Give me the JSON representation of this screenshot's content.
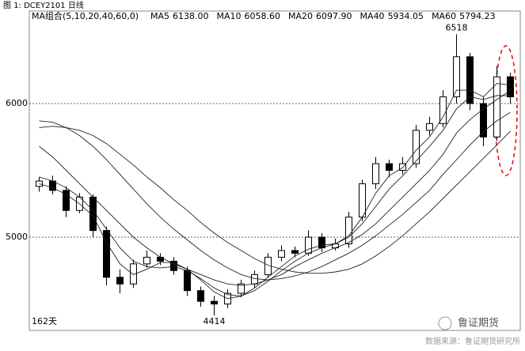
{
  "chart_data": {
    "type": "candlestick",
    "title": "图 1: DCEY2101 日线",
    "legend_title": "MA组合(5,10,20,40,60,0)",
    "period_label": "162天",
    "source": "数据来源：鲁证期货研究所",
    "watermark": "鲁证期货",
    "ylim": [
      4302,
      6692
    ],
    "yticks": [
      5000,
      6000
    ],
    "grid": true,
    "candle_color": "#000000",
    "open": [
      5380,
      5420,
      5350,
      5200,
      5300,
      5050,
      4700,
      4650,
      4800,
      4850,
      4820,
      4750,
      4600,
      4520,
      4500,
      4580,
      4650,
      4720,
      4850,
      4900,
      4880,
      5000,
      4920,
      4950,
      5150,
      5400,
      5550,
      5500,
      5550,
      5800,
      5850,
      6050,
      6350,
      6000,
      5750,
      6200
    ],
    "high": [
      5450,
      5460,
      5380,
      5330,
      5320,
      5080,
      4760,
      4830,
      4900,
      4880,
      4850,
      4780,
      4630,
      4560,
      4610,
      4680,
      4750,
      4880,
      4940,
      4930,
      5050,
      5030,
      4990,
      5190,
      5430,
      5600,
      5580,
      5600,
      5840,
      5900,
      6100,
      6518,
      6380,
      6050,
      6280,
      6230
    ],
    "low": [
      5340,
      5320,
      5150,
      5180,
      5000,
      4640,
      4580,
      4620,
      4770,
      4790,
      4720,
      4560,
      4480,
      4414,
      4470,
      4550,
      4620,
      4700,
      4820,
      4850,
      4860,
      4890,
      4900,
      4920,
      5120,
      5360,
      5450,
      5470,
      5520,
      5760,
      5820,
      6000,
      5950,
      5680,
      5720,
      6000
    ],
    "close": [
      5420,
      5350,
      5200,
      5300,
      5050,
      4700,
      4650,
      4800,
      4850,
      4820,
      4750,
      4600,
      4520,
      4500,
      4580,
      4650,
      4720,
      4850,
      4900,
      4880,
      5000,
      4920,
      4950,
      5150,
      5400,
      5550,
      5500,
      5550,
      5800,
      5850,
      6050,
      6350,
      6000,
      5750,
      6200,
      6050
    ],
    "series": [
      {
        "name": "MA5",
        "color": "#222222",
        "legend_value": {
          "value": 6138,
          "label": "6138.00"
        },
        "values": [
          5400,
          5370,
          5320,
          5250,
          5160,
          4960,
          4800,
          4720,
          4760,
          4810,
          4810,
          4760,
          4680,
          4590,
          4540,
          4560,
          4620,
          4700,
          4780,
          4860,
          4910,
          4940,
          4950,
          5010,
          5150,
          5330,
          5460,
          5520,
          5650,
          5750,
          5900,
          6100,
          6100,
          6050,
          6150,
          6138
        ]
      },
      {
        "name": "MA10",
        "color": "#222222",
        "legend_value": {
          "value": 6058.6,
          "label": "6058.60"
        },
        "values": [
          5450,
          5420,
          5370,
          5300,
          5200,
          5060,
          4920,
          4820,
          4780,
          4770,
          4780,
          4750,
          4690,
          4620,
          4570,
          4560,
          4600,
          4670,
          4750,
          4820,
          4880,
          4920,
          4950,
          5000,
          5100,
          5230,
          5360,
          5460,
          5570,
          5680,
          5800,
          5960,
          6050,
          6030,
          6060,
          6058.6
        ]
      },
      {
        "name": "MA20",
        "color": "#222222",
        "legend_value": {
          "value": 6097.9,
          "label": "6097.90"
        },
        "values": [
          5680,
          5600,
          5500,
          5400,
          5300,
          5200,
          5100,
          5000,
          4920,
          4850,
          4800,
          4760,
          4720,
          4680,
          4650,
          4640,
          4650,
          4680,
          4720,
          4780,
          4830,
          4880,
          4920,
          4960,
          5020,
          5100,
          5200,
          5300,
          5400,
          5500,
          5620,
          5780,
          5880,
          5960,
          6030,
          6097.9
        ]
      },
      {
        "name": "MA40",
        "color": "#222222",
        "legend_value": {
          "value": 5934.05,
          "label": "5934.05"
        },
        "values": [
          5870,
          5860,
          5820,
          5760,
          5680,
          5580,
          5470,
          5360,
          5250,
          5150,
          5060,
          4980,
          4900,
          4830,
          4770,
          4720,
          4690,
          4680,
          4690,
          4710,
          4740,
          4780,
          4830,
          4880,
          4940,
          5010,
          5090,
          5170,
          5260,
          5350,
          5470,
          5580,
          5690,
          5790,
          5870,
          5934.05
        ]
      },
      {
        "name": "MA60",
        "color": "#222222",
        "legend_value": {
          "value": 5794.23,
          "label": "5794.23"
        },
        "values": [
          5820,
          5830,
          5820,
          5800,
          5760,
          5700,
          5620,
          5540,
          5450,
          5370,
          5280,
          5200,
          5110,
          5030,
          4960,
          4900,
          4840,
          4790,
          4760,
          4740,
          4730,
          4730,
          4740,
          4760,
          4800,
          4860,
          4930,
          5010,
          5100,
          5190,
          5290,
          5390,
          5490,
          5590,
          5690,
          5794.23
        ]
      }
    ]
  }
}
